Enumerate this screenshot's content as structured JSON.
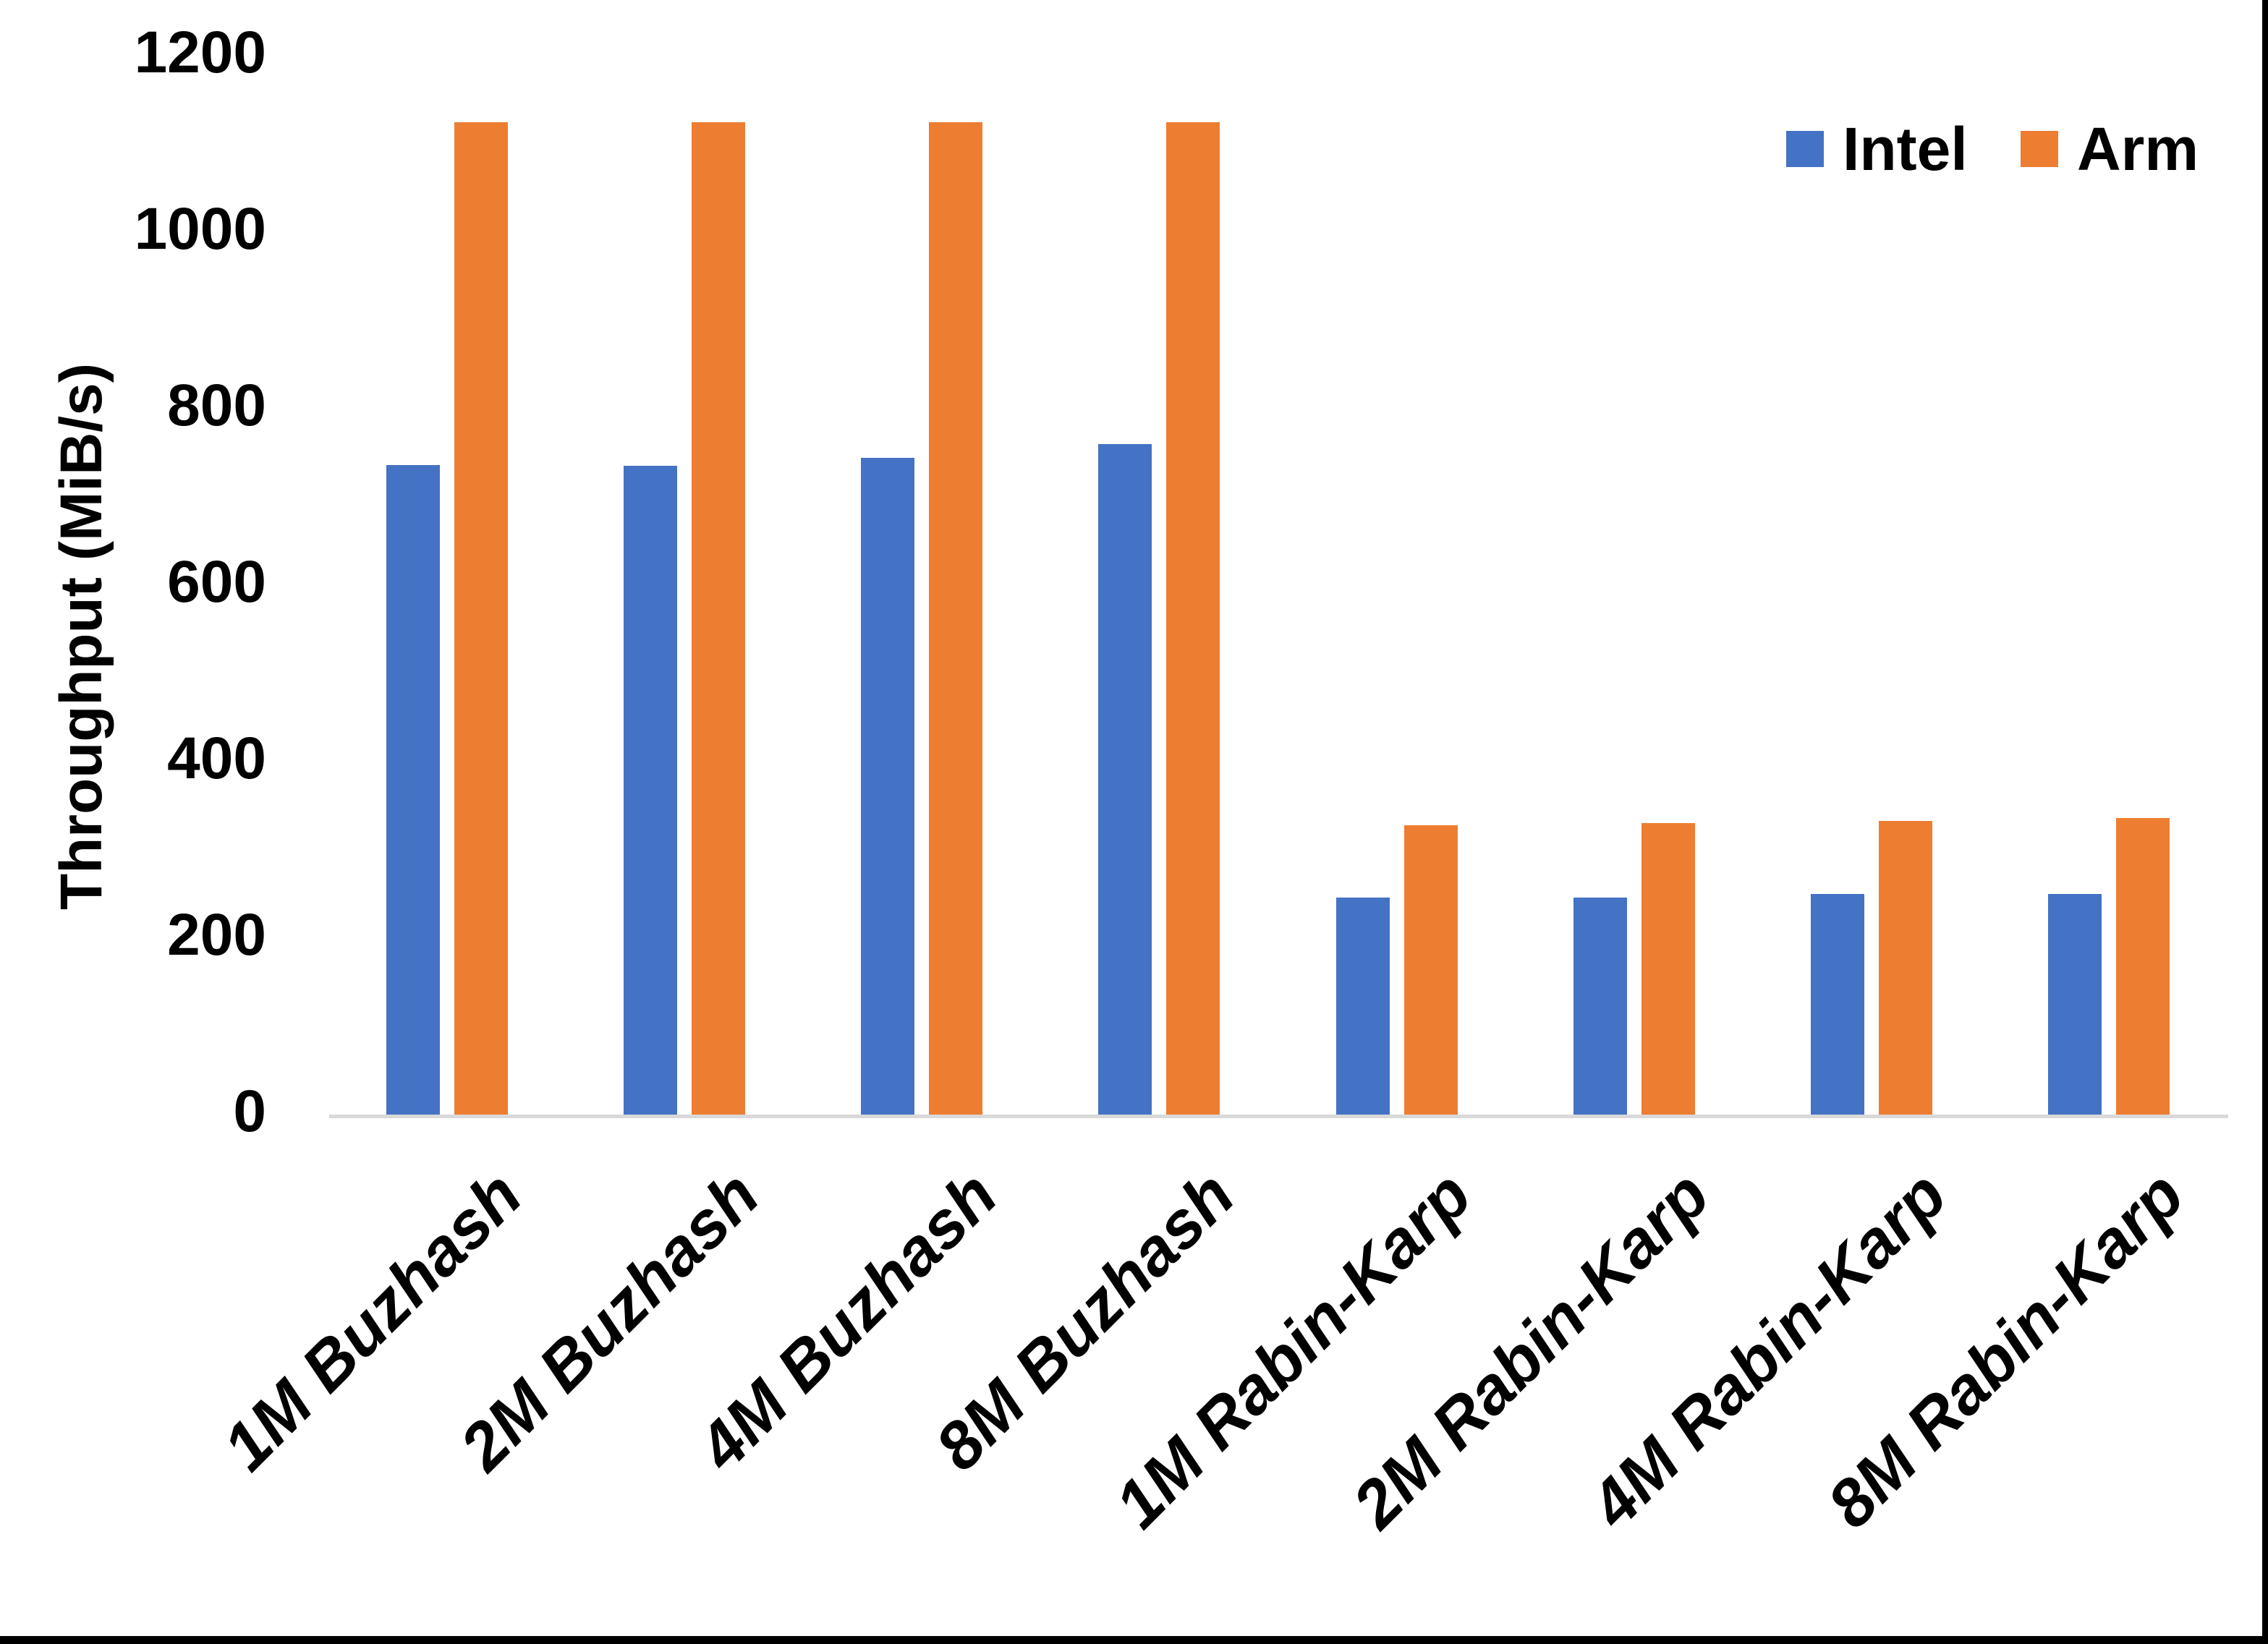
{
  "chart_data": {
    "type": "bar",
    "title": "",
    "xlabel": "",
    "ylabel": "Throughput (MiB/s)",
    "categories": [
      "1M Buzhash",
      "2M Buzhash",
      "4M Buzhash",
      "8M Buzhash",
      "1M Rabin-Karp",
      "2M Rabin-Karp",
      "4M Rabin-Karp",
      "8M Rabin-Karp"
    ],
    "series": [
      {
        "name": "Intel",
        "color": "#4472C4",
        "values": [
          736,
          735,
          744,
          760,
          246,
          246,
          250,
          250
        ]
      },
      {
        "name": "Arm",
        "color": "#ED7D31",
        "values": [
          1125,
          1125,
          1125,
          1125,
          328,
          330,
          333,
          336
        ]
      }
    ],
    "ylim": [
      0,
      1200
    ],
    "yticks": [
      0,
      200,
      400,
      600,
      800,
      1000,
      1200
    ],
    "grid": false,
    "legend_position": "top-right",
    "axis_line_color": "#D9D9D9",
    "text_color": "#000000",
    "background_color": "#FFFFFF",
    "frame_border_color": "#000000"
  }
}
